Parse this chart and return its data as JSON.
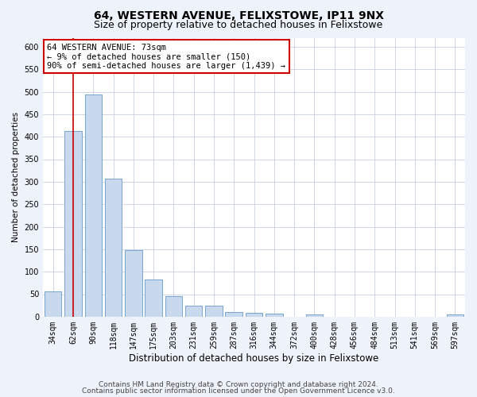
{
  "title": "64, WESTERN AVENUE, FELIXSTOWE, IP11 9NX",
  "subtitle": "Size of property relative to detached houses in Felixstowe",
  "xlabel": "Distribution of detached houses by size in Felixstowe",
  "ylabel": "Number of detached properties",
  "categories": [
    "34sqm",
    "62sqm",
    "90sqm",
    "118sqm",
    "147sqm",
    "175sqm",
    "203sqm",
    "231sqm",
    "259sqm",
    "287sqm",
    "316sqm",
    "344sqm",
    "372sqm",
    "400sqm",
    "428sqm",
    "456sqm",
    "484sqm",
    "513sqm",
    "541sqm",
    "569sqm",
    "597sqm"
  ],
  "values": [
    57,
    412,
    493,
    307,
    148,
    82,
    45,
    25,
    25,
    10,
    8,
    7,
    0,
    5,
    0,
    0,
    0,
    0,
    0,
    0,
    5
  ],
  "bar_color": "#c9d9ed",
  "bar_edge_color": "#6699cc",
  "annotation_line1": "64 WESTERN AVENUE: 73sqm",
  "annotation_line2": "← 9% of detached houses are smaller (150)",
  "annotation_line3": "90% of semi-detached houses are larger (1,439) →",
  "annotation_box_color": "#ffffff",
  "annotation_box_edge_color": "#cc0000",
  "vline_color": "#cc0000",
  "vline_x": 1,
  "ylim": [
    0,
    620
  ],
  "yticks": [
    0,
    50,
    100,
    150,
    200,
    250,
    300,
    350,
    400,
    450,
    500,
    550,
    600
  ],
  "footer_line1": "Contains HM Land Registry data © Crown copyright and database right 2024.",
  "footer_line2": "Contains public sector information licensed under the Open Government Licence v3.0.",
  "bg_color": "#eef2fa",
  "plot_bg_color": "#ffffff",
  "grid_color": "#c8d0e8",
  "title_fontsize": 10,
  "subtitle_fontsize": 9,
  "xlabel_fontsize": 8.5,
  "ylabel_fontsize": 7.5,
  "tick_fontsize": 7,
  "annotation_fontsize": 7.5,
  "footer_fontsize": 6.5
}
